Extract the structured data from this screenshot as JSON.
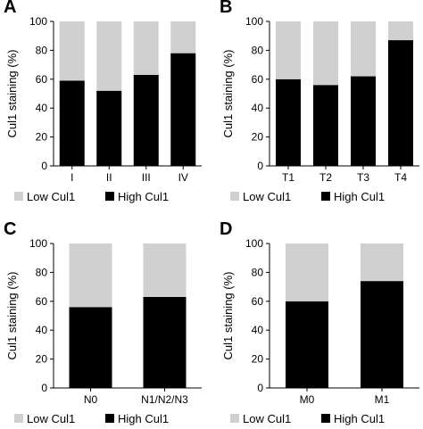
{
  "colors": {
    "low": "#d0d0d0",
    "high": "#000000"
  },
  "chart_data": [
    {
      "panel": "A",
      "type": "bar",
      "stacked": true,
      "ylabel": "Cul1 staining (%)",
      "ylim": [
        0,
        100
      ],
      "yticks": [
        0,
        20,
        40,
        60,
        80,
        100
      ],
      "categories": [
        "I",
        "II",
        "III",
        "IV"
      ],
      "series": [
        {
          "name": "Low Cul1",
          "values": [
            41,
            48,
            37,
            22
          ]
        },
        {
          "name": "High Cul1",
          "values": [
            59,
            52,
            63,
            78
          ]
        }
      ],
      "legend": [
        "Low Cul1",
        "High Cul1"
      ],
      "legend_position": "bottom"
    },
    {
      "panel": "B",
      "type": "bar",
      "stacked": true,
      "ylabel": "Cul1 staining (%)",
      "ylim": [
        0,
        100
      ],
      "yticks": [
        0,
        20,
        40,
        60,
        80,
        100
      ],
      "categories": [
        "T1",
        "T2",
        "T3",
        "T4"
      ],
      "series": [
        {
          "name": "Low Cul1",
          "values": [
            40,
            44,
            38,
            13
          ]
        },
        {
          "name": "High Cul1",
          "values": [
            60,
            56,
            62,
            87
          ]
        }
      ],
      "legend": [
        "Low Cul1",
        "High Cul1"
      ],
      "legend_position": "bottom"
    },
    {
      "panel": "C",
      "type": "bar",
      "stacked": true,
      "ylabel": "Cul1 staining (%)",
      "ylim": [
        0,
        100
      ],
      "yticks": [
        0,
        20,
        40,
        60,
        80,
        100
      ],
      "categories": [
        "N0",
        "N1/N2/N3"
      ],
      "series": [
        {
          "name": "Low Cul1",
          "values": [
            44,
            37
          ]
        },
        {
          "name": "High Cul1",
          "values": [
            56,
            63
          ]
        }
      ],
      "legend": [
        "Low Cul1",
        "High Cul1"
      ],
      "legend_position": "bottom"
    },
    {
      "panel": "D",
      "type": "bar",
      "stacked": true,
      "ylabel": "Cul1 staining (%)",
      "ylim": [
        0,
        100
      ],
      "yticks": [
        0,
        20,
        40,
        60,
        80,
        100
      ],
      "categories": [
        "M0",
        "M1"
      ],
      "series": [
        {
          "name": "Low Cul1",
          "values": [
            40,
            26
          ]
        },
        {
          "name": "High Cul1",
          "values": [
            60,
            74
          ]
        }
      ],
      "legend": [
        "Low Cul1",
        "High Cul1"
      ],
      "legend_position": "bottom"
    }
  ]
}
